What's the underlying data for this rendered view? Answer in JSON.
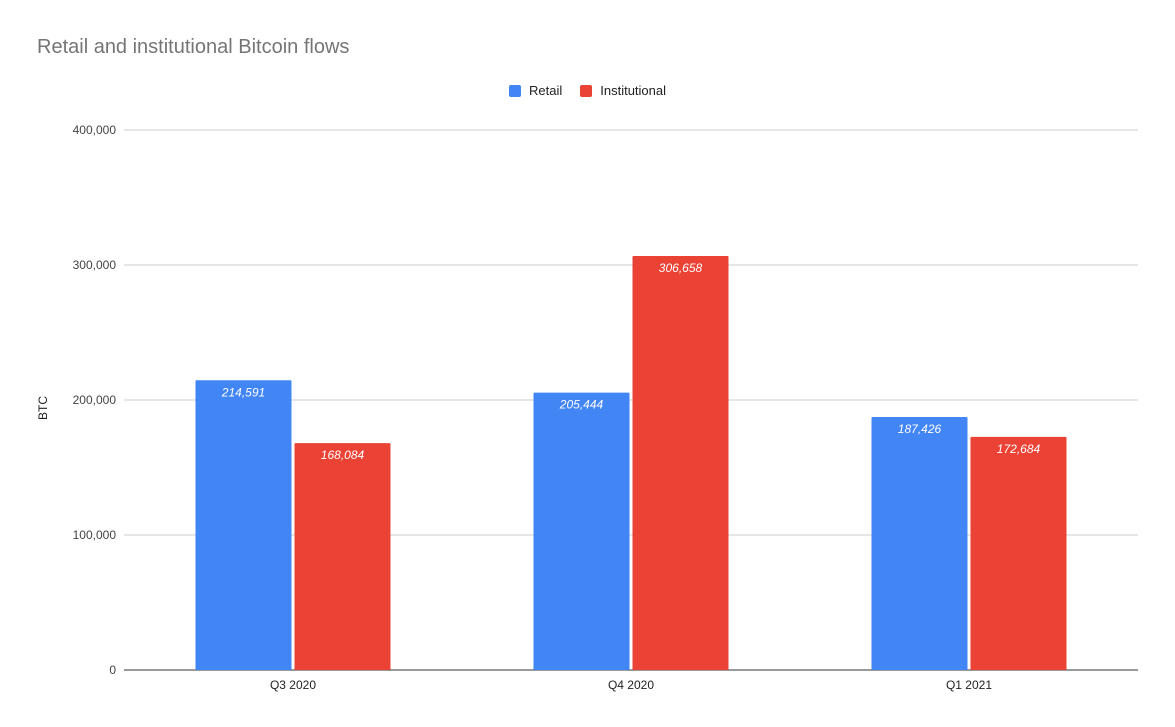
{
  "chart_data": {
    "type": "bar",
    "title": "Retail and institutional Bitcoin flows",
    "xlabel": "",
    "ylabel": "BTC",
    "ylim": [
      0,
      400000
    ],
    "yticks": [
      "0",
      "100,000",
      "200,000",
      "300,000",
      "400,000"
    ],
    "categories": [
      "Q3 2020",
      "Q4 2020",
      "Q1 2021"
    ],
    "series": [
      {
        "name": "Retail",
        "color": "#4285f4",
        "values": [
          214591,
          205444,
          187426
        ],
        "labels": [
          "214,591",
          "205,444",
          "187,426"
        ]
      },
      {
        "name": "Institutional",
        "color": "#ea4335",
        "values": [
          168084,
          306658,
          172684
        ],
        "labels": [
          "168,084",
          "306,658",
          "172,684"
        ]
      }
    ],
    "legend": "top-center",
    "grid": true
  }
}
